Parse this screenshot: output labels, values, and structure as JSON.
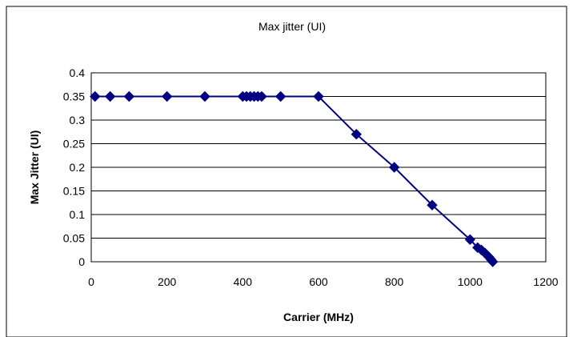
{
  "chart_data": {
    "type": "line",
    "title": "Max jitter (UI)",
    "xlabel": "Carrier (MHz)",
    "ylabel": "Max Jitter (UI)",
    "xlim": [
      0,
      1200
    ],
    "ylim": [
      0,
      0.4
    ],
    "x_ticks": [
      0,
      200,
      400,
      600,
      800,
      1000,
      1200
    ],
    "x_tick_labels": [
      "0",
      "200",
      "400",
      "600",
      "800",
      "1000",
      "1200"
    ],
    "y_ticks": [
      0,
      0.05,
      0.1,
      0.15,
      0.2,
      0.25,
      0.3,
      0.35,
      0.4
    ],
    "y_tick_labels": [
      "0",
      "0.05",
      "0.1",
      "0.15",
      "0.2",
      "0.25",
      "0.3",
      "0.35",
      "0.4"
    ],
    "grid": "horizontal",
    "legend": "none",
    "series": [
      {
        "marker": "diamond",
        "color": "#000080",
        "x": [
          10,
          50,
          100,
          200,
          300,
          400,
          410,
          420,
          430,
          440,
          450,
          500,
          600,
          700,
          800,
          900,
          1000,
          1020,
          1030,
          1040,
          1050,
          1055,
          1060
        ],
        "y": [
          0.35,
          0.35,
          0.35,
          0.35,
          0.35,
          0.35,
          0.35,
          0.35,
          0.35,
          0.35,
          0.35,
          0.35,
          0.35,
          0.27,
          0.2,
          0.12,
          0.047,
          0.03,
          0.025,
          0.018,
          0.01,
          0.005,
          0.0
        ]
      }
    ]
  }
}
